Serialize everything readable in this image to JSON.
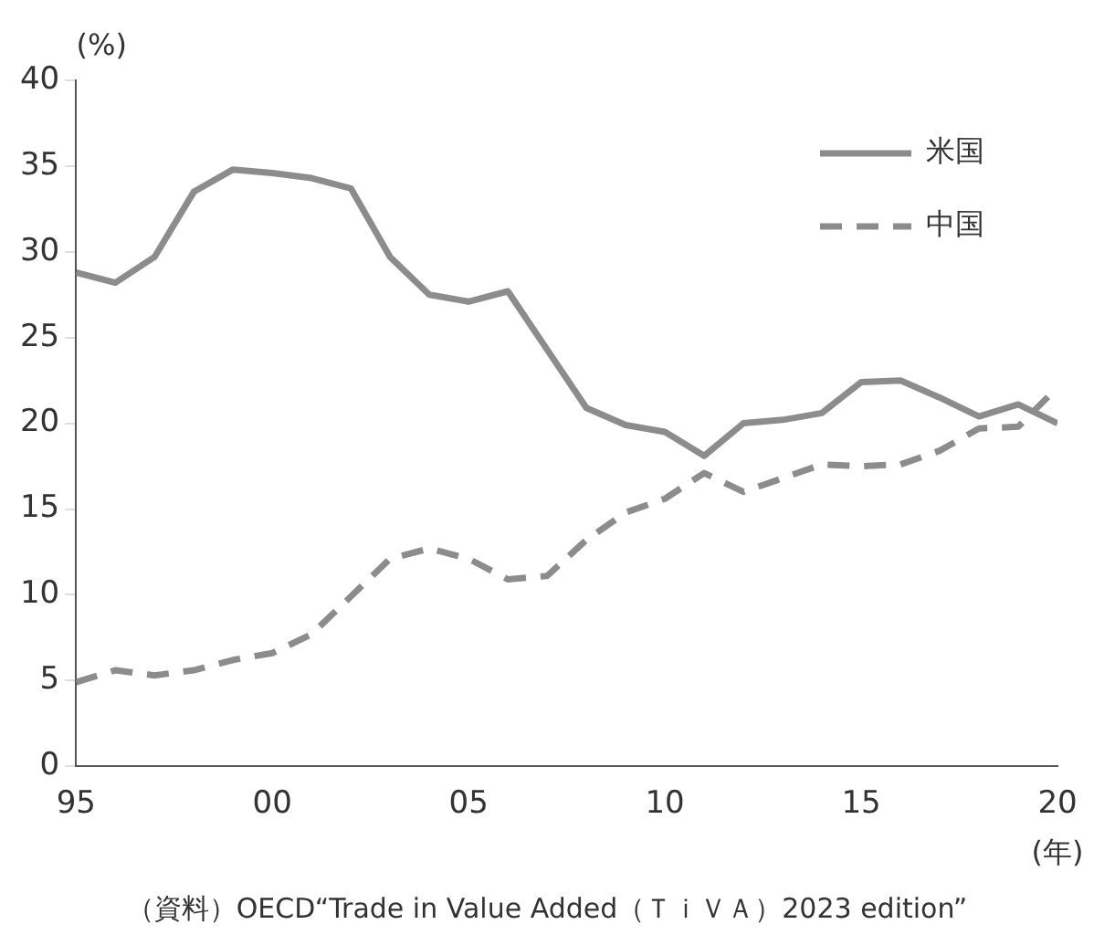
{
  "chart_data": {
    "type": "line",
    "ylabel": "(%)",
    "xlabel": "(年)",
    "annotations": [
      "（資料）OECD“Trade in Value Added（ＴｉＶＡ）2023 edition”"
    ],
    "x": [
      1995,
      1996,
      1997,
      1998,
      1999,
      2000,
      2001,
      2002,
      2003,
      2004,
      2005,
      2006,
      2007,
      2008,
      2009,
      2010,
      2011,
      2012,
      2013,
      2014,
      2015,
      2016,
      2017,
      2018,
      2019,
      2020
    ],
    "xlim": [
      1995,
      2020
    ],
    "xticks": [
      {
        "value": 1995,
        "label": "95"
      },
      {
        "value": 2000,
        "label": "00"
      },
      {
        "value": 2005,
        "label": "05"
      },
      {
        "value": 2010,
        "label": "10"
      },
      {
        "value": 2015,
        "label": "15"
      },
      {
        "value": 2020,
        "label": "20"
      }
    ],
    "ylim": [
      0,
      40
    ],
    "yticks": [
      0,
      5,
      10,
      15,
      20,
      25,
      30,
      35,
      40
    ],
    "grid": false,
    "legend": "top right",
    "marker": "none",
    "series": [
      {
        "name": "米国",
        "color": "#8c8c8c",
        "line_style": "solid",
        "values": [
          28.8,
          28.2,
          29.7,
          33.5,
          34.8,
          34.6,
          34.3,
          33.7,
          29.7,
          27.5,
          27.1,
          27.7,
          24.3,
          20.9,
          19.9,
          19.5,
          18.1,
          20.0,
          20.2,
          20.6,
          22.4,
          22.5,
          21.5,
          20.4,
          21.1,
          20.0
        ]
      },
      {
        "name": "中国",
        "color": "#8c8c8c",
        "line_style": "dashed",
        "values": [
          4.9,
          5.6,
          5.3,
          5.6,
          6.2,
          6.6,
          7.7,
          9.9,
          12.1,
          12.7,
          12.1,
          10.9,
          11.1,
          13.2,
          14.8,
          15.6,
          17.1,
          16.0,
          16.8,
          17.6,
          17.5,
          17.6,
          18.4,
          19.7,
          19.8,
          22.1
        ]
      }
    ]
  }
}
